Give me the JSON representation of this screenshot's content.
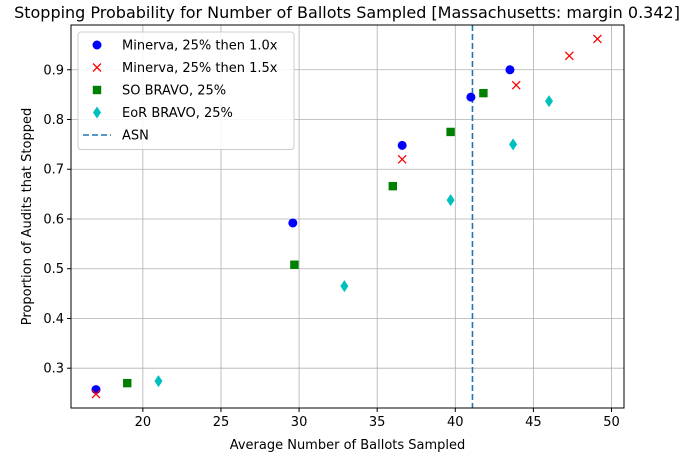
{
  "chart_data": {
    "type": "scatter",
    "title": "Stopping Probability for Number of Ballots Sampled [Massachusetts: margin 0.342]",
    "xlabel": "Average Number of Ballots Sampled",
    "ylabel": "Proportion of Audits that Stopped",
    "xlim": [
      15.4,
      50.8
    ],
    "ylim": [
      0.22,
      0.99
    ],
    "xticks": [
      20,
      25,
      30,
      35,
      40,
      45,
      50
    ],
    "yticks": [
      0.3,
      0.4,
      0.5,
      0.6,
      0.7,
      0.8,
      0.9
    ],
    "grid": true,
    "legend_position": "top-left",
    "series": [
      {
        "name": "Minerva, 25% then 1.0x",
        "marker": "circle",
        "color": "#0000ff",
        "points": [
          [
            17.0,
            0.257
          ],
          [
            29.6,
            0.592
          ],
          [
            36.6,
            0.748
          ],
          [
            41.0,
            0.845
          ],
          [
            43.5,
            0.9
          ]
        ]
      },
      {
        "name": "Minerva, 25% then 1.5x",
        "marker": "x",
        "color": "#ff0000",
        "points": [
          [
            17.0,
            0.248
          ],
          [
            36.6,
            0.72
          ],
          [
            43.9,
            0.869
          ],
          [
            47.3,
            0.928
          ],
          [
            49.1,
            0.962
          ]
        ]
      },
      {
        "name": "SO BRAVO, 25%",
        "marker": "square",
        "color": "#008000",
        "points": [
          [
            19.0,
            0.27
          ],
          [
            29.7,
            0.508
          ],
          [
            36.0,
            0.666
          ],
          [
            39.7,
            0.775
          ],
          [
            41.8,
            0.853
          ]
        ]
      },
      {
        "name": "EoR BRAVO, 25%",
        "marker": "diamond",
        "color": "#00bfbf",
        "points": [
          [
            21.0,
            0.274
          ],
          [
            32.9,
            0.465
          ],
          [
            39.7,
            0.638
          ],
          [
            43.7,
            0.75
          ],
          [
            46.0,
            0.837
          ]
        ]
      }
    ],
    "vlines": [
      {
        "name": "ASN",
        "x": 41.1,
        "color": "#1f77b4",
        "style": "dashed"
      }
    ]
  }
}
